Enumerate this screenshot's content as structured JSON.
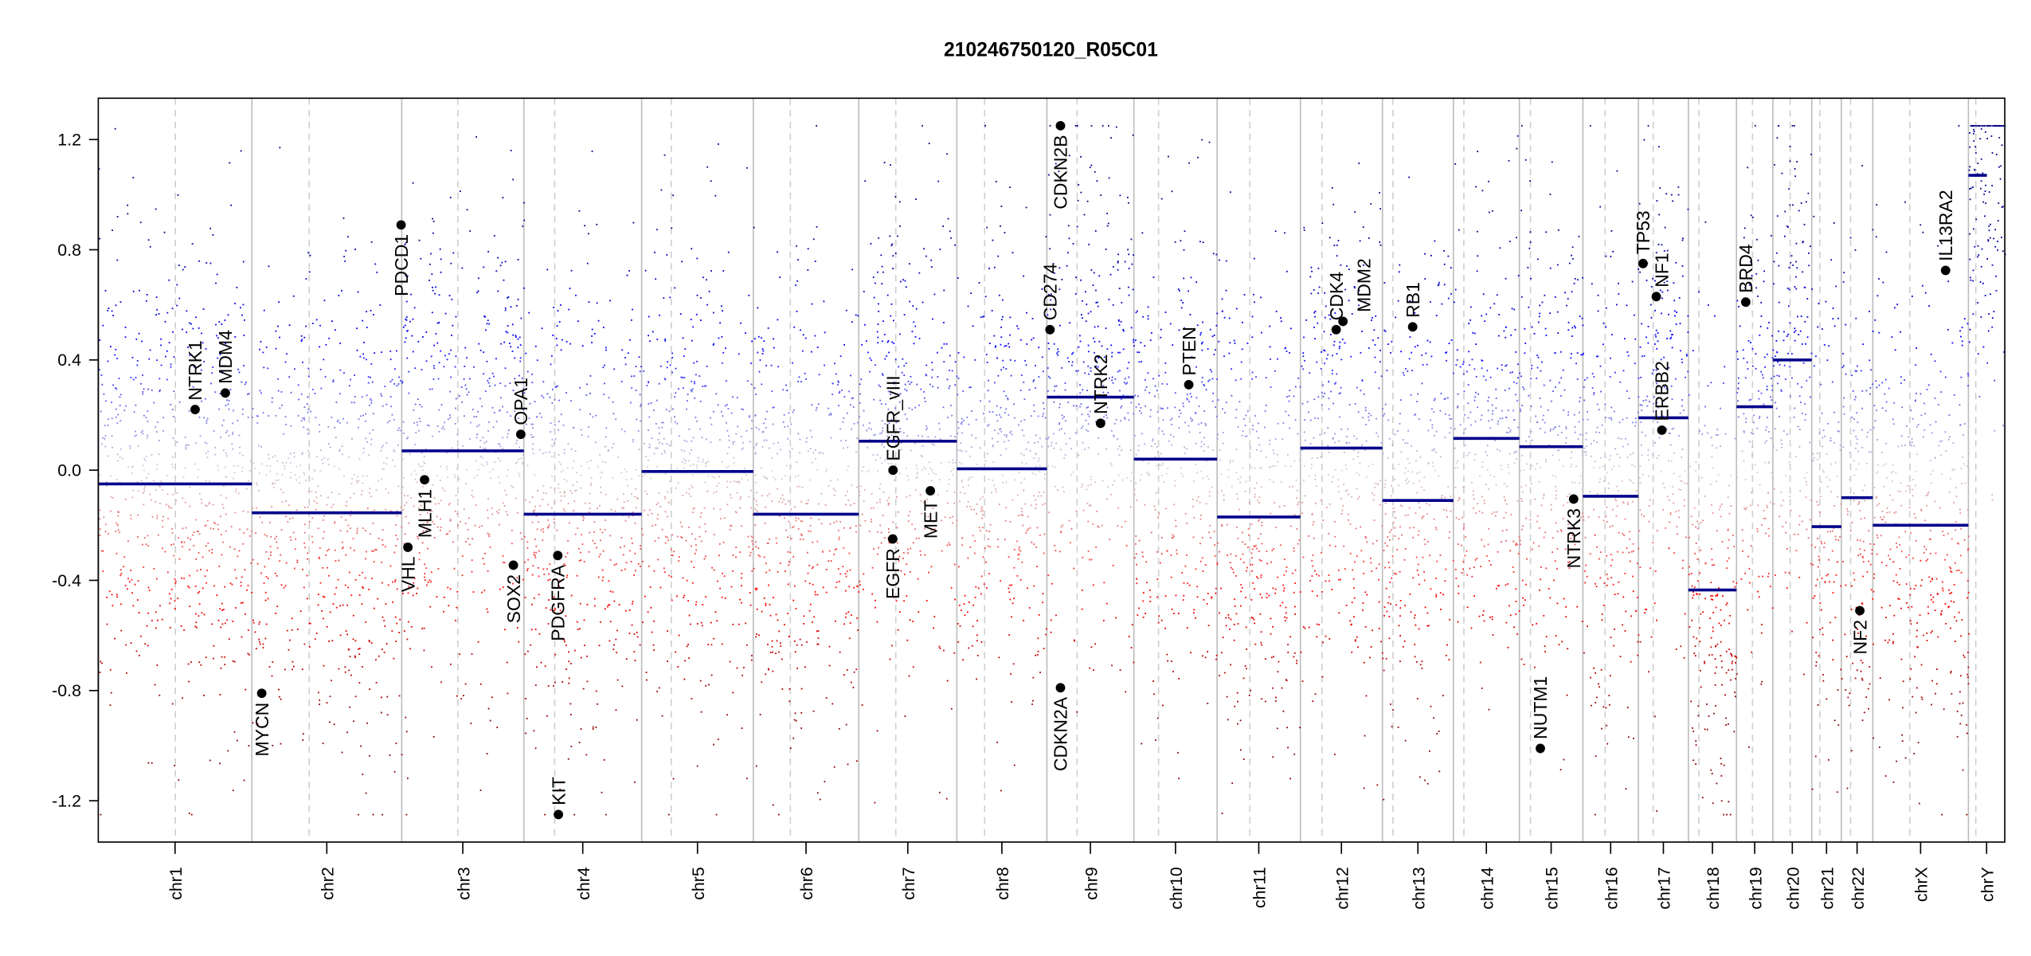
{
  "chart_data": {
    "type": "scatter",
    "title": "210246750120_R05C01",
    "xlabel": "",
    "ylabel": "",
    "ylim": [
      -1.35,
      1.35
    ],
    "yticks": [
      "-1.2",
      "-0.8",
      "-0.4",
      "0.0",
      "0.4",
      "0.8",
      "1.2"
    ],
    "ytick_values": [
      -1.2,
      -0.8,
      -0.4,
      0.0,
      0.4,
      0.8,
      1.2
    ],
    "clip_value": 1.25,
    "colors": {
      "high": "#00008b",
      "mid_high": "#0000ff",
      "neutral": "#d3d3d3",
      "mid_low": "#ff0000",
      "low": "#8b0000",
      "segment": "#00008b",
      "gene": "#000000"
    },
    "chromosomes": [
      {
        "name": "chr1",
        "length_mb": 249,
        "centromere_mb": 125,
        "segment": -0.05
      },
      {
        "name": "chr2",
        "length_mb": 243,
        "centromere_mb": 93,
        "segment": -0.155
      },
      {
        "name": "chr3",
        "length_mb": 198,
        "centromere_mb": 91,
        "segment": 0.07
      },
      {
        "name": "chr4",
        "length_mb": 191,
        "centromere_mb": 50,
        "segment": -0.16
      },
      {
        "name": "chr5",
        "length_mb": 181,
        "centromere_mb": 48,
        "segment": -0.005
      },
      {
        "name": "chr6",
        "length_mb": 171,
        "centromere_mb": 60,
        "segment": -0.16
      },
      {
        "name": "chr7",
        "length_mb": 159,
        "centromere_mb": 60,
        "segment": 0.105
      },
      {
        "name": "chr8",
        "length_mb": 146,
        "centromere_mb": 45,
        "segment": 0.005
      },
      {
        "name": "chr9",
        "length_mb": 141,
        "centromere_mb": 49,
        "segment": 0.265
      },
      {
        "name": "chr10",
        "length_mb": 135,
        "centromere_mb": 40,
        "segment": 0.04
      },
      {
        "name": "chr11",
        "length_mb": 135,
        "centromere_mb": 53,
        "segment": -0.17
      },
      {
        "name": "chr12",
        "length_mb": 133,
        "centromere_mb": 35,
        "segment": 0.08
      },
      {
        "name": "chr13",
        "length_mb": 115,
        "centromere_mb": 17,
        "segment": -0.11
      },
      {
        "name": "chr14",
        "length_mb": 107,
        "centromere_mb": 17,
        "segment": 0.115
      },
      {
        "name": "chr15",
        "length_mb": 103,
        "centromere_mb": 18,
        "segment": 0.085
      },
      {
        "name": "chr16",
        "length_mb": 90,
        "centromere_mb": 36,
        "segment": -0.095
      },
      {
        "name": "chr17",
        "length_mb": 81,
        "centromere_mb": 24,
        "segment": 0.19
      },
      {
        "name": "chr18",
        "length_mb": 78,
        "centromere_mb": 17,
        "segment": -0.435
      },
      {
        "name": "chr19",
        "length_mb": 59,
        "centromere_mb": 26,
        "segment": 0.23
      },
      {
        "name": "chr20",
        "length_mb": 63,
        "centromere_mb": 28,
        "segment": 0.4
      },
      {
        "name": "chr21",
        "length_mb": 48,
        "centromere_mb": 13,
        "segment": -0.205
      },
      {
        "name": "chr22",
        "length_mb": 51,
        "centromere_mb": 15,
        "segment": -0.1
      },
      {
        "name": "chrX",
        "length_mb": 155,
        "centromere_mb": 60,
        "segment": -0.2
      },
      {
        "name": "chrY",
        "length_mb": 59,
        "centromere_mb": 12,
        "segment": 1.07,
        "segment_end_mb": 30
      }
    ],
    "genes": [
      {
        "name": "NTRK1",
        "chr": "chr1",
        "pos_mb": 157,
        "value": 0.22
      },
      {
        "name": "MDM4",
        "chr": "chr1",
        "pos_mb": 206,
        "value": 0.28
      },
      {
        "name": "MYCN",
        "chr": "chr2",
        "pos_mb": 16,
        "value": -0.81
      },
      {
        "name": "PDCD1",
        "chr": "chr2",
        "pos_mb": 242,
        "value": 0.89
      },
      {
        "name": "VHL",
        "chr": "chr3",
        "pos_mb": 10,
        "value": -0.28
      },
      {
        "name": "MLH1",
        "chr": "chr3",
        "pos_mb": 37,
        "value": -0.035
      },
      {
        "name": "SOX2",
        "chr": "chr3",
        "pos_mb": 181,
        "value": -0.345
      },
      {
        "name": "OPA1",
        "chr": "chr3",
        "pos_mb": 193,
        "value": 0.13
      },
      {
        "name": "PDGFRA",
        "chr": "chr4",
        "pos_mb": 55,
        "value": -0.31
      },
      {
        "name": "KIT",
        "chr": "chr4",
        "pos_mb": 56,
        "value": -1.25
      },
      {
        "name": "EGFR",
        "chr": "chr7",
        "pos_mb": 55,
        "value": -0.25
      },
      {
        "name": "EGFR_vIII",
        "chr": "chr7",
        "pos_mb": 55.5,
        "value": 0.0
      },
      {
        "name": "MET",
        "chr": "chr7",
        "pos_mb": 116,
        "value": -0.075
      },
      {
        "name": "CD274",
        "chr": "chr9",
        "pos_mb": 5,
        "value": 0.51
      },
      {
        "name": "CDKN2B",
        "chr": "chr9",
        "pos_mb": 22,
        "value": 1.25
      },
      {
        "name": "CDKN2A",
        "chr": "chr9",
        "pos_mb": 22,
        "value": -0.79
      },
      {
        "name": "NTRK2",
        "chr": "chr9",
        "pos_mb": 87,
        "value": 0.17
      },
      {
        "name": "PTEN",
        "chr": "chr10",
        "pos_mb": 89,
        "value": 0.31
      },
      {
        "name": "CDK4",
        "chr": "chr12",
        "pos_mb": 58,
        "value": 0.51
      },
      {
        "name": "MDM2",
        "chr": "chr12",
        "pos_mb": 69,
        "value": 0.54
      },
      {
        "name": "RB1",
        "chr": "chr13",
        "pos_mb": 49,
        "value": 0.52
      },
      {
        "name": "NUTM1",
        "chr": "chr15",
        "pos_mb": 34,
        "value": -1.01
      },
      {
        "name": "NTRK3",
        "chr": "chr15",
        "pos_mb": 88,
        "value": -0.105
      },
      {
        "name": "TP53",
        "chr": "chr17",
        "pos_mb": 7.5,
        "value": 0.75
      },
      {
        "name": "NF1",
        "chr": "chr17",
        "pos_mb": 29,
        "value": 0.63
      },
      {
        "name": "ERBB2",
        "chr": "chr17",
        "pos_mb": 38,
        "value": 0.145
      },
      {
        "name": "BRD4",
        "chr": "chr19",
        "pos_mb": 15,
        "value": 0.61
      },
      {
        "name": "NF2",
        "chr": "chr22",
        "pos_mb": 30,
        "value": -0.51
      },
      {
        "name": "IL13RA2",
        "chr": "chrX",
        "pos_mb": 118,
        "value": 0.725
      }
    ]
  }
}
